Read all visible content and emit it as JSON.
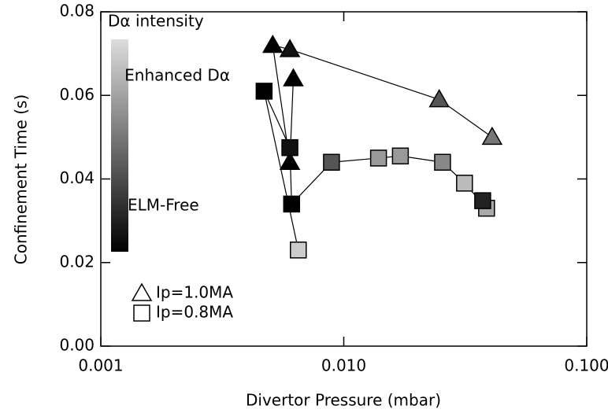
{
  "chart_data": {
    "type": "scatter",
    "xlabel": "Divertor Pressure (mbar)",
    "ylabel": "Confinement Time (s)",
    "xscale": "log",
    "xlim": [
      0.001,
      0.1
    ],
    "xticks": [
      {
        "value": 0.001,
        "label": "0.001"
      },
      {
        "value": 0.01,
        "label": "0.010"
      },
      {
        "value": 0.1,
        "label": "0.100"
      }
    ],
    "ylim": [
      0,
      0.08
    ],
    "yticks": [
      {
        "value": 0,
        "label": "0.00"
      },
      {
        "value": 0.02,
        "label": "0.02"
      },
      {
        "value": 0.04,
        "label": "0.04"
      },
      {
        "value": 0.06,
        "label": "0.06"
      },
      {
        "value": 0.08,
        "label": "0.08"
      }
    ],
    "colorbar": {
      "title": "Dα intensity",
      "top_label": "Enhanced Dα",
      "bottom_label": "ELM-Free",
      "colors": [
        "#dddddd",
        "#000000"
      ]
    },
    "series": [
      {
        "name": "Ip=1.0MA",
        "marker": "triangle",
        "x": [
          0.0062,
          0.006,
          0.0051,
          0.006,
          0.0247,
          0.0408
        ],
        "values": [
          0.064,
          0.044,
          0.072,
          0.071,
          0.059,
          0.05
        ],
        "colors": [
          "#000000",
          "#000000",
          "#000000",
          "#111111",
          "#555555",
          "#777777"
        ]
      },
      {
        "name": "Ip=0.8MA",
        "marker": "square",
        "x": [
          0.0065,
          0.0047,
          0.006,
          0.0061,
          0.0089,
          0.0139,
          0.0171,
          0.0255,
          0.0314,
          0.0387,
          0.0373
        ],
        "values": [
          0.023,
          0.061,
          0.0475,
          0.034,
          0.044,
          0.045,
          0.0455,
          0.044,
          0.039,
          0.033,
          0.0348
        ],
        "colors": [
          "#cccccc",
          "#000000",
          "#111111",
          "#000000",
          "#555555",
          "#999999",
          "#999999",
          "#888888",
          "#bbbbbb",
          "#aaaaaa",
          "#222222"
        ]
      }
    ]
  }
}
